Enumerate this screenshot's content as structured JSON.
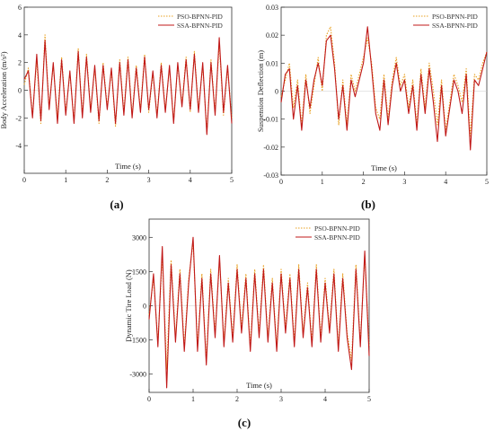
{
  "figure": {
    "panel_labels": [
      "(a)",
      "(b)",
      "(c)"
    ]
  },
  "colors": {
    "pso": "#e8a020",
    "ssa": "#c01818",
    "axis": "#333333"
  },
  "chart_data": [
    {
      "type": "line",
      "panel": "(a)",
      "xlabel": "Time (s)",
      "ylabel": "Body Acceleration (m/s²)",
      "xlim": [
        0,
        5
      ],
      "ylim": [
        -6,
        6
      ],
      "xticks": [
        0,
        1,
        2,
        3,
        4,
        5
      ],
      "yticks": [
        -4,
        -2,
        0,
        2,
        4,
        6
      ],
      "legend_position": "top-right",
      "series": [
        {
          "name": "PSO-BPNN-PID",
          "style": "dotted",
          "x": [
            0,
            0.1,
            0.2,
            0.3,
            0.4,
            0.5,
            0.6,
            0.7,
            0.8,
            0.9,
            1.0,
            1.1,
            1.2,
            1.3,
            1.4,
            1.5,
            1.6,
            1.7,
            1.8,
            1.9,
            2.0,
            2.1,
            2.2,
            2.3,
            2.4,
            2.5,
            2.6,
            2.7,
            2.8,
            2.9,
            3.0,
            3.1,
            3.2,
            3.3,
            3.4,
            3.5,
            3.6,
            3.7,
            3.8,
            3.9,
            4.0,
            4.1,
            4.2,
            4.3,
            4.4,
            4.5,
            4.6,
            4.7,
            4.8,
            4.9,
            5.0
          ],
          "y": [
            0.4,
            1.6,
            -1.8,
            2.2,
            -2.4,
            4.0,
            -1.2,
            1.8,
            -2.0,
            2.4,
            -1.6,
            1.2,
            -2.2,
            3.0,
            -1.8,
            2.6,
            -1.4,
            1.6,
            -2.4,
            2.0,
            -1.2,
            1.4,
            -2.6,
            2.2,
            -1.6,
            2.4,
            -1.8,
            1.8,
            -1.4,
            2.6,
            -1.6,
            1.2,
            -1.8,
            2.0,
            -1.4,
            1.6,
            -2.2,
            1.8,
            -1.0,
            2.4,
            -1.6,
            2.8,
            -1.4,
            1.8,
            -3.0,
            2.2,
            -1.6,
            3.4,
            -1.8,
            1.6,
            -2.0
          ]
        },
        {
          "name": "SSA-BPNN-PID",
          "style": "solid",
          "x": [
            0,
            0.1,
            0.2,
            0.3,
            0.4,
            0.5,
            0.6,
            0.7,
            0.8,
            0.9,
            1.0,
            1.1,
            1.2,
            1.3,
            1.4,
            1.5,
            1.6,
            1.7,
            1.8,
            1.9,
            2.0,
            2.1,
            2.2,
            2.3,
            2.4,
            2.5,
            2.6,
            2.7,
            2.8,
            2.9,
            3.0,
            3.1,
            3.2,
            3.3,
            3.4,
            3.5,
            3.6,
            3.7,
            3.8,
            3.9,
            4.0,
            4.1,
            4.2,
            4.3,
            4.4,
            4.5,
            4.6,
            4.7,
            4.8,
            4.9,
            5.0
          ],
          "y": [
            0.8,
            1.4,
            -2.0,
            2.6,
            -2.2,
            3.6,
            -1.4,
            2.0,
            -2.4,
            2.2,
            -1.8,
            1.4,
            -2.4,
            2.8,
            -2.0,
            2.4,
            -1.6,
            1.8,
            -2.2,
            1.8,
            -1.4,
            1.6,
            -2.4,
            2.0,
            -1.8,
            2.2,
            -2.0,
            1.6,
            -1.6,
            2.4,
            -1.4,
            1.4,
            -2.0,
            1.8,
            -1.6,
            1.8,
            -2.4,
            2.0,
            -1.2,
            2.2,
            -1.4,
            2.6,
            -1.6,
            2.0,
            -3.2,
            2.0,
            -1.8,
            3.8,
            -1.6,
            1.8,
            -2.4
          ]
        }
      ]
    },
    {
      "type": "line",
      "panel": "(b)",
      "xlabel": "Time (s)",
      "ylabel": "Suspension Deflection (m)",
      "xlim": [
        0,
        5
      ],
      "ylim": [
        -0.03,
        0.03
      ],
      "xticks": [
        0,
        1,
        2,
        3,
        4,
        5
      ],
      "yticks": [
        -0.03,
        -0.02,
        -0.01,
        0,
        0.01,
        0.02,
        0.03
      ],
      "legend_position": "top-right",
      "series": [
        {
          "name": "PSO-BPNN-PID",
          "style": "dotted",
          "x": [
            0,
            0.1,
            0.2,
            0.3,
            0.4,
            0.5,
            0.6,
            0.7,
            0.8,
            0.9,
            1.0,
            1.1,
            1.2,
            1.3,
            1.4,
            1.5,
            1.6,
            1.7,
            1.8,
            1.9,
            2.0,
            2.1,
            2.2,
            2.3,
            2.4,
            2.5,
            2.6,
            2.7,
            2.8,
            2.9,
            3.0,
            3.1,
            3.2,
            3.3,
            3.4,
            3.5,
            3.6,
            3.7,
            3.8,
            3.9,
            4.0,
            4.1,
            4.2,
            4.3,
            4.4,
            4.5,
            4.6,
            4.7,
            4.8,
            4.9,
            5.0
          ],
          "y": [
            -0.002,
            0.004,
            0.01,
            -0.006,
            0.004,
            -0.012,
            0.006,
            -0.008,
            0.002,
            0.012,
            0.0,
            0.02,
            0.023,
            0.01,
            -0.012,
            0.004,
            -0.012,
            0.006,
            0.0,
            0.006,
            0.012,
            0.019,
            0.01,
            -0.006,
            -0.01,
            0.006,
            -0.01,
            0.004,
            0.012,
            0.002,
            0.006,
            -0.006,
            0.004,
            -0.012,
            0.008,
            -0.006,
            0.01,
            0.0,
            -0.012,
            0.004,
            -0.014,
            -0.004,
            0.006,
            0.002,
            -0.004,
            0.008,
            -0.016,
            0.006,
            0.004,
            0.01,
            0.014
          ]
        },
        {
          "name": "SSA-BPNN-PID",
          "style": "solid",
          "x": [
            0,
            0.1,
            0.2,
            0.3,
            0.4,
            0.5,
            0.6,
            0.7,
            0.8,
            0.9,
            1.0,
            1.1,
            1.2,
            1.3,
            1.4,
            1.5,
            1.6,
            1.7,
            1.8,
            1.9,
            2.0,
            2.1,
            2.2,
            2.3,
            2.4,
            2.5,
            2.6,
            2.7,
            2.8,
            2.9,
            3.0,
            3.1,
            3.2,
            3.3,
            3.4,
            3.5,
            3.6,
            3.7,
            3.8,
            3.9,
            4.0,
            4.1,
            4.2,
            4.3,
            4.4,
            4.5,
            4.6,
            4.7,
            4.8,
            4.9,
            5.0
          ],
          "y": [
            -0.004,
            0.006,
            0.008,
            -0.01,
            0.002,
            -0.014,
            0.004,
            -0.006,
            0.004,
            0.01,
            0.002,
            0.018,
            0.02,
            0.008,
            -0.01,
            0.002,
            -0.014,
            0.004,
            -0.002,
            0.004,
            0.01,
            0.023,
            0.008,
            -0.008,
            -0.014,
            0.004,
            -0.012,
            0.002,
            0.01,
            0.0,
            0.004,
            -0.008,
            0.002,
            -0.014,
            0.006,
            -0.008,
            0.008,
            -0.004,
            -0.018,
            0.002,
            -0.016,
            -0.006,
            0.004,
            0.0,
            -0.008,
            0.006,
            -0.021,
            0.004,
            0.002,
            0.008,
            0.014
          ]
        }
      ]
    },
    {
      "type": "line",
      "panel": "(c)",
      "xlabel": "Time (s)",
      "ylabel": "Dynamic Tire Load (N)",
      "xlim": [
        0,
        5
      ],
      "ylim": [
        -3800,
        3800
      ],
      "xticks": [
        0,
        1,
        2,
        3,
        4,
        5
      ],
      "yticks": [
        -3000,
        -1500,
        0,
        1500,
        3000
      ],
      "legend_position": "top-right",
      "series": [
        {
          "name": "PSO-BPNN-PID",
          "style": "dotted",
          "x": [
            0,
            0.1,
            0.2,
            0.3,
            0.4,
            0.5,
            0.6,
            0.7,
            0.8,
            0.9,
            1.0,
            1.1,
            1.2,
            1.3,
            1.4,
            1.5,
            1.6,
            1.7,
            1.8,
            1.9,
            2.0,
            2.1,
            2.2,
            2.3,
            2.4,
            2.5,
            2.6,
            2.7,
            2.8,
            2.9,
            3.0,
            3.1,
            3.2,
            3.3,
            3.4,
            3.5,
            3.6,
            3.7,
            3.8,
            3.9,
            4.0,
            4.1,
            4.2,
            4.3,
            4.4,
            4.5,
            4.6,
            4.7,
            4.8,
            4.9,
            5.0
          ],
          "y": [
            -400,
            1200,
            -1600,
            2200,
            -2800,
            2000,
            -1400,
            1600,
            -1800,
            1200,
            2800,
            -1800,
            1400,
            -2400,
            1600,
            -1200,
            2000,
            -1600,
            1200,
            -1400,
            1800,
            -1000,
            1400,
            -1800,
            1600,
            -1200,
            1800,
            -1400,
            1200,
            -1800,
            1600,
            -1000,
            1400,
            -1600,
            1800,
            -1200,
            1000,
            -1600,
            1800,
            -1400,
            1200,
            -1000,
            1600,
            -1800,
            1400,
            -1200,
            -2400,
            1800,
            -1600,
            2200,
            -1800
          ]
        },
        {
          "name": "SSA-BPNN-PID",
          "style": "solid",
          "x": [
            0,
            0.1,
            0.2,
            0.3,
            0.4,
            0.5,
            0.6,
            0.7,
            0.8,
            0.9,
            1.0,
            1.1,
            1.2,
            1.3,
            1.4,
            1.5,
            1.6,
            1.7,
            1.8,
            1.9,
            2.0,
            2.1,
            2.2,
            2.3,
            2.4,
            2.5,
            2.6,
            2.7,
            2.8,
            2.9,
            3.0,
            3.1,
            3.2,
            3.3,
            3.4,
            3.5,
            3.6,
            3.7,
            3.8,
            3.9,
            4.0,
            4.1,
            4.2,
            4.3,
            4.4,
            4.5,
            4.6,
            4.7,
            4.8,
            4.9,
            5.0
          ],
          "y": [
            -600,
            1400,
            -1800,
            2600,
            -3600,
            1800,
            -1600,
            1400,
            -2000,
            1000,
            3000,
            -2000,
            1200,
            -2600,
            1400,
            -1400,
            2200,
            -1800,
            1000,
            -1600,
            1600,
            -1200,
            1200,
            -2000,
            1400,
            -1400,
            1600,
            -1600,
            1000,
            -2000,
            1400,
            -1200,
            1200,
            -1800,
            1600,
            -1400,
            800,
            -1800,
            1600,
            -1600,
            1000,
            -1200,
            1400,
            -2000,
            1200,
            -1400,
            -2800,
            1600,
            -1800,
            2400,
            -2200
          ]
        }
      ]
    }
  ]
}
